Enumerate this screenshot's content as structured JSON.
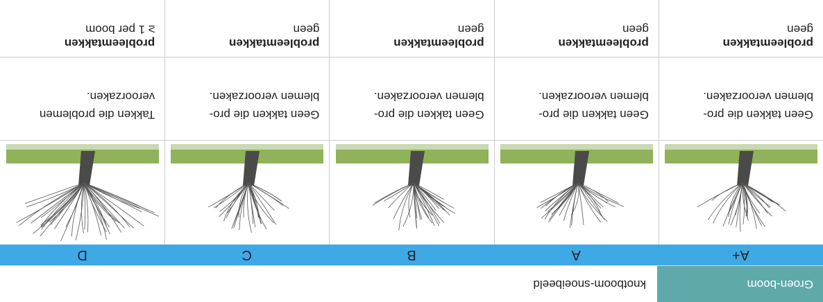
{
  "header": {
    "title": "Groen-boom",
    "subtitle": "knotboom-snoeibeeld"
  },
  "columns": [
    {
      "grade": "A+",
      "description": [
        "Geen takken die pro-",
        "blemen veroorzaken."
      ],
      "problem": [
        "probleemtakken",
        "geen"
      ]
    },
    {
      "grade": "A",
      "description": [
        "Geen takken die pro-",
        "blemen veroorzaken."
      ],
      "problem": [
        "probleemtakken",
        "geen"
      ]
    },
    {
      "grade": "B",
      "description": [
        "Geen takken die pro-",
        "blemen veroorzaken."
      ],
      "problem": [
        "probleemtakken",
        "geen"
      ]
    },
    {
      "grade": "C",
      "description": [
        "Geen takken die pro-",
        "blemen veroorzaken."
      ],
      "problem": [
        "probleemtakken",
        "geen"
      ]
    },
    {
      "grade": "D",
      "description": [
        "Takken die problemen",
        "veroorzaken."
      ],
      "problem": [
        "probleemtakken",
        "≥ 1 per boom"
      ]
    }
  ]
}
